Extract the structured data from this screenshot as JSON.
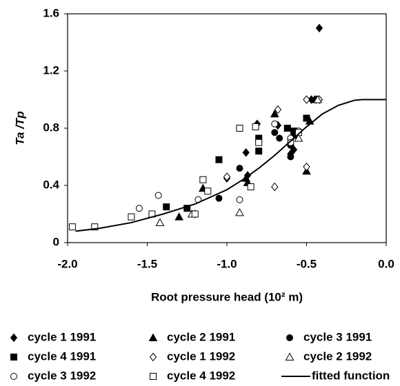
{
  "chart_data": {
    "type": "scatter",
    "x_label": "Root pressure head (10² m)",
    "y_label": "Ta /Tp",
    "xlim": [
      -2.0,
      0.0
    ],
    "ylim": [
      0,
      1.6
    ],
    "xticks": [
      {
        "value": -2.0,
        "label": "-2.0"
      },
      -1.5,
      {
        "value": -1.0,
        "label": "-1.0"
      },
      -0.5,
      {
        "value": 0.0,
        "label": "0.0"
      }
    ],
    "yticks": [
      0,
      0.4,
      0.8,
      1.2,
      1.6
    ],
    "series": [
      {
        "name": "cycle 1 1991",
        "marker": "diamond",
        "filled": true,
        "color": "#000000",
        "x": [
          -0.42,
          -0.88,
          -1.0,
          -0.81,
          -0.68,
          -0.58,
          -0.6,
          -0.47,
          -0.44,
          -0.87
        ],
        "values": [
          1.5,
          0.63,
          0.45,
          0.83,
          0.82,
          0.65,
          0.62,
          1.0,
          1.0,
          0.47
        ]
      },
      {
        "name": "cycle 2 1991",
        "marker": "triangle",
        "filled": true,
        "color": "#000000",
        "x": [
          -1.3,
          -1.15,
          -0.87,
          -0.7,
          -0.58,
          -0.5,
          -0.48,
          -0.45,
          -0.88
        ],
        "values": [
          0.18,
          0.38,
          0.42,
          0.9,
          0.75,
          0.5,
          0.85,
          1.0,
          0.45
        ]
      },
      {
        "name": "cycle 3 1991",
        "marker": "circle",
        "filled": true,
        "color": "#000000",
        "x": [
          -1.05,
          -0.92,
          -0.7,
          -0.67,
          -0.6,
          -0.58,
          -0.6
        ],
        "values": [
          0.31,
          0.52,
          0.77,
          0.73,
          0.6,
          0.76,
          0.68
        ]
      },
      {
        "name": "cycle 4 1991",
        "marker": "square",
        "filled": true,
        "color": "#000000",
        "x": [
          -1.38,
          -1.25,
          -1.05,
          -0.8,
          -0.62,
          -0.5,
          -0.58,
          -0.8
        ],
        "values": [
          0.25,
          0.24,
          0.58,
          0.64,
          0.8,
          0.87,
          0.78,
          0.73
        ]
      },
      {
        "name": "cycle 1 1992",
        "marker": "diamond",
        "filled": false,
        "color": "#000000",
        "x": [
          -1.2,
          -1.0,
          -0.7,
          -0.68,
          -0.5,
          -0.5,
          -0.42,
          -0.6
        ],
        "values": [
          0.2,
          0.46,
          0.39,
          0.93,
          1.0,
          0.53,
          1.0,
          0.72
        ]
      },
      {
        "name": "cycle 2 1992",
        "marker": "triangle",
        "filled": false,
        "color": "#000000",
        "x": [
          -1.42,
          -1.22,
          -0.92,
          -0.55,
          -0.43
        ],
        "values": [
          0.14,
          0.2,
          0.21,
          0.73,
          1.0
        ]
      },
      {
        "name": "cycle 3 1992",
        "marker": "circle",
        "filled": false,
        "color": "#000000",
        "x": [
          -1.55,
          -1.43,
          -1.18,
          -0.92,
          -0.7,
          -0.6,
          -0.55,
          -0.6
        ],
        "values": [
          0.24,
          0.33,
          0.3,
          0.3,
          0.83,
          0.73,
          0.78,
          0.7
        ]
      },
      {
        "name": "cycle 4 1992",
        "marker": "square",
        "filled": false,
        "color": "#000000",
        "x": [
          -1.97,
          -1.83,
          -1.6,
          -1.47,
          -1.2,
          -1.15,
          -1.12,
          -0.92,
          -0.82,
          -0.85,
          -0.8,
          -0.55
        ],
        "values": [
          0.11,
          0.11,
          0.18,
          0.2,
          0.2,
          0.44,
          0.36,
          0.8,
          0.81,
          0.39,
          0.7,
          0.77
        ]
      },
      {
        "name": "fitted function",
        "marker": "line",
        "filled": false,
        "color": "#000000",
        "x": [
          -1.95,
          -1.8,
          -1.6,
          -1.4,
          -1.2,
          -1.0,
          -0.9,
          -0.8,
          -0.7,
          -0.6,
          -0.5,
          -0.4,
          -0.3,
          -0.2,
          -0.15,
          0.0
        ],
        "values": [
          0.08,
          0.1,
          0.14,
          0.2,
          0.27,
          0.37,
          0.44,
          0.52,
          0.61,
          0.71,
          0.81,
          0.9,
          0.96,
          0.995,
          1.0,
          1.0
        ]
      }
    ]
  }
}
